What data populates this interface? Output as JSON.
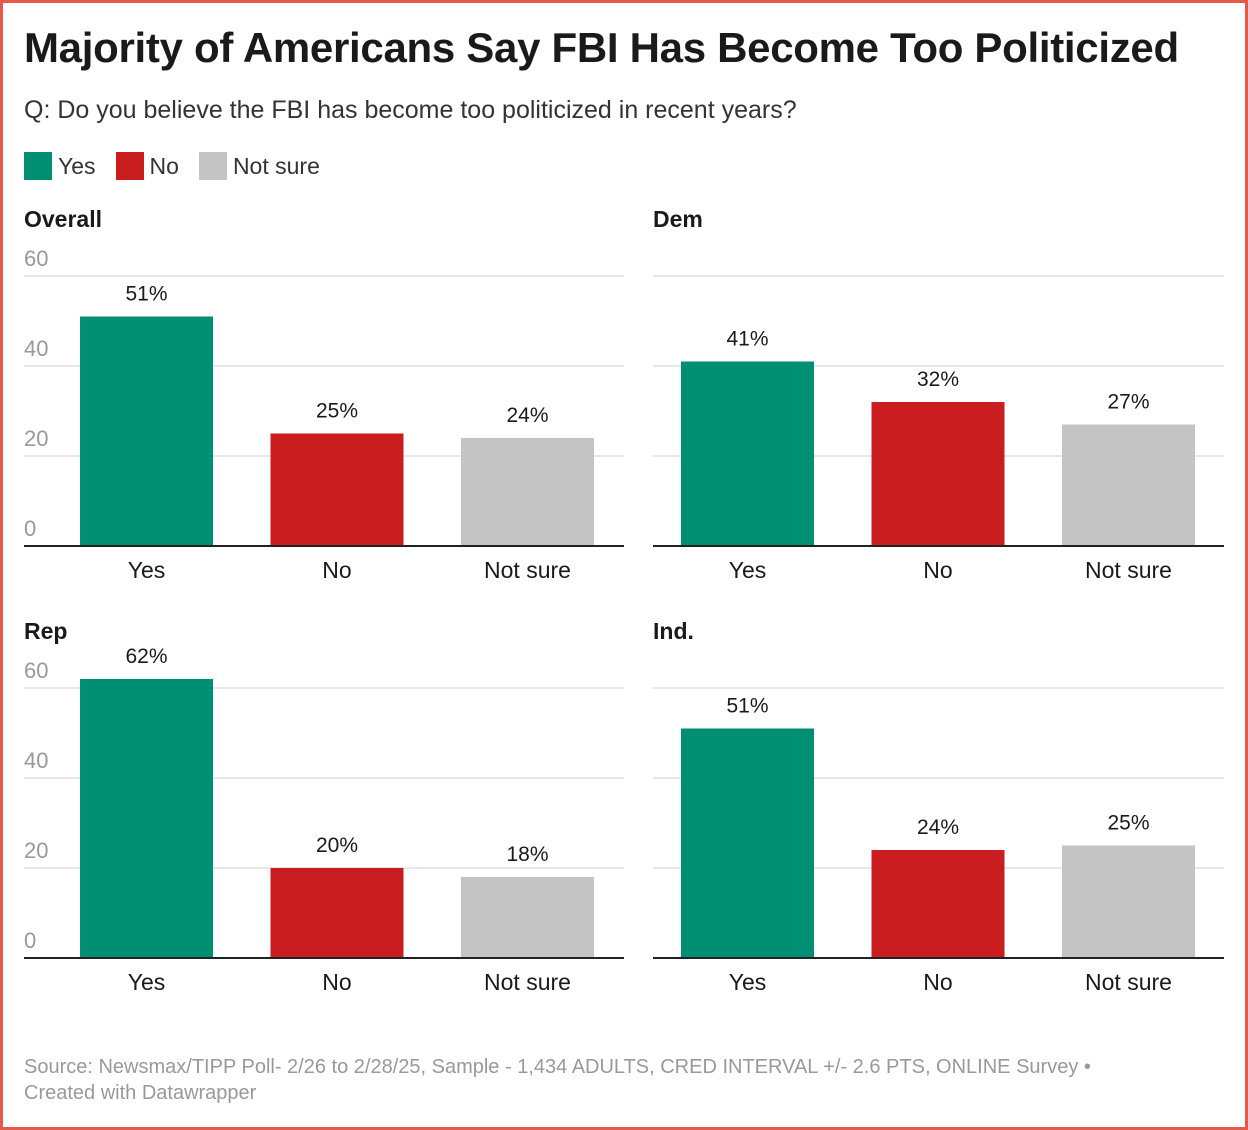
{
  "title": "Majority of Americans Say FBI Has Become Too Politicized",
  "subtitle": "Q: Do you believe the FBI has become too politicized in recent years?",
  "legend": [
    {
      "label": "Yes",
      "color": "#008f72"
    },
    {
      "label": "No",
      "color": "#c91d1f"
    },
    {
      "label": "Not sure",
      "color": "#c4c4c4"
    }
  ],
  "colors": {
    "border": "#e8584a",
    "grid": "#e0e0e0",
    "tick": "#999999"
  },
  "chart_data": [
    {
      "type": "bar",
      "title": "Overall",
      "categories": [
        "Yes",
        "No",
        "Not sure"
      ],
      "values": [
        51,
        25,
        24
      ],
      "labels": [
        "51%",
        "25%",
        "24%"
      ],
      "ylim": [
        0,
        60
      ],
      "yticks": [
        "0",
        "20",
        "40",
        "60"
      ],
      "show_yticks": true,
      "grid": true
    },
    {
      "type": "bar",
      "title": "Dem",
      "categories": [
        "Yes",
        "No",
        "Not sure"
      ],
      "values": [
        41,
        32,
        27
      ],
      "labels": [
        "41%",
        "32%",
        "27%"
      ],
      "ylim": [
        0,
        60
      ],
      "show_yticks": false,
      "grid": true
    },
    {
      "type": "bar",
      "title": "Rep",
      "categories": [
        "Yes",
        "No",
        "Not sure"
      ],
      "values": [
        62,
        20,
        18
      ],
      "labels": [
        "62%",
        "20%",
        "18%"
      ],
      "ylim": [
        0,
        60
      ],
      "yticks": [
        "0",
        "20",
        "40",
        "60"
      ],
      "show_yticks": true,
      "grid": true
    },
    {
      "type": "bar",
      "title": "Ind.",
      "categories": [
        "Yes",
        "No",
        "Not sure"
      ],
      "values": [
        51,
        24,
        25
      ],
      "labels": [
        "51%",
        "24%",
        "25%"
      ],
      "ylim": [
        0,
        60
      ],
      "show_yticks": false,
      "grid": true
    }
  ],
  "footer": {
    "source": "Source: Newsmax/TIPP Poll- 2/26 to 2/28/25, Sample - 1,434 ADULTS, CRED INTERVAL +/- 2.6 PTS, ONLINE Survey •",
    "credit": "Created with Datawrapper"
  }
}
